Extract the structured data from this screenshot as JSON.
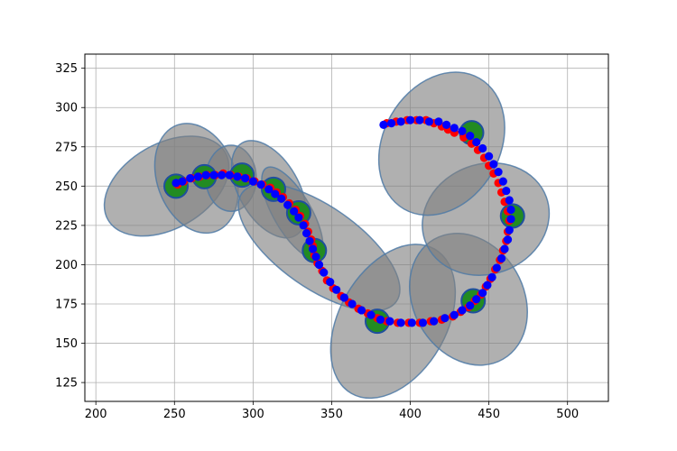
{
  "chart_data": {
    "type": "scatter",
    "title": "",
    "xlabel": "",
    "ylabel": "",
    "xlim": [
      193,
      526
    ],
    "ylim": [
      113,
      334
    ],
    "grid": true,
    "xticks": [
      200,
      250,
      300,
      350,
      400,
      450,
      500
    ],
    "yticks": [
      125,
      150,
      175,
      200,
      225,
      250,
      275,
      300,
      325
    ],
    "xtick_labels": [
      "200",
      "250",
      "300",
      "350",
      "400",
      "450",
      "500"
    ],
    "ytick_labels": [
      "125",
      "150",
      "175",
      "200",
      "225",
      "250",
      "275",
      "300",
      "325"
    ],
    "colors": {
      "ellipse_fill": "#808080",
      "ellipse_edge": "#4f7aa6",
      "landmark_fill": "#228b22",
      "landmark_edge": "#1f4f9e",
      "estimate": "#ff0000",
      "truth": "#0000ff"
    },
    "uncertainty_ellipses": [
      {
        "cx": 245,
        "cy": 250,
        "rx": 43,
        "ry": 27,
        "angle": 30
      },
      {
        "cx": 264,
        "cy": 255,
        "rx": 25,
        "ry": 36,
        "angle": 20
      },
      {
        "cx": 286,
        "cy": 255,
        "rx": 16,
        "ry": 21,
        "angle": 0
      },
      {
        "cx": 310,
        "cy": 248,
        "rx": 19,
        "ry": 34,
        "angle": 30
      },
      {
        "cx": 325,
        "cy": 233,
        "rx": 12,
        "ry": 33,
        "angle": 30
      },
      {
        "cx": 342,
        "cy": 211,
        "rx": 26,
        "ry": 60,
        "angle": 55
      },
      {
        "cx": 389,
        "cy": 164,
        "rx": 34,
        "ry": 53,
        "angle": -30
      },
      {
        "cx": 437,
        "cy": 178,
        "rx": 35,
        "ry": 44,
        "angle": 30
      },
      {
        "cx": 448,
        "cy": 229,
        "rx": 41,
        "ry": 35,
        "angle": 20
      },
      {
        "cx": 420,
        "cy": 277,
        "rx": 37,
        "ry": 48,
        "angle": -30
      }
    ],
    "landmarks": [
      {
        "x": 251,
        "y": 250
      },
      {
        "x": 269,
        "y": 256
      },
      {
        "x": 293,
        "y": 257
      },
      {
        "x": 313,
        "y": 248
      },
      {
        "x": 329,
        "y": 233
      },
      {
        "x": 339,
        "y": 209
      },
      {
        "x": 379,
        "y": 164
      },
      {
        "x": 440,
        "y": 177
      },
      {
        "x": 465,
        "y": 231
      },
      {
        "x": 439,
        "y": 284
      }
    ],
    "series": [
      {
        "marker": "red",
        "x": [
          252,
          256,
          261,
          266,
          271,
          276,
          281,
          286,
          291,
          296,
          301,
          306,
          311,
          315,
          319,
          323,
          327,
          330,
          333,
          335,
          337,
          338,
          339,
          341,
          344,
          347,
          351,
          356,
          361,
          367,
          373,
          379,
          385,
          392,
          399,
          406,
          413,
          420,
          427,
          432,
          437,
          441,
          445,
          448,
          451,
          454,
          457,
          459,
          461,
          462,
          463,
          462,
          460,
          458,
          456,
          453,
          450,
          447,
          443,
          439,
          434,
          428,
          424,
          420,
          415,
          410,
          404,
          398,
          391,
          385
        ],
        "y": [
          251,
          253,
          255,
          256,
          257,
          257,
          258,
          257,
          256,
          255,
          253,
          251,
          249,
          246,
          243,
          239,
          235,
          231,
          226,
          221,
          216,
          212,
          206,
          201,
          196,
          190,
          185,
          180,
          176,
          172,
          169,
          166,
          164,
          163,
          163,
          163,
          164,
          165,
          167,
          170,
          173,
          177,
          181,
          186,
          191,
          197,
          203,
          209,
          215,
          221,
          228,
          234,
          240,
          246,
          252,
          258,
          263,
          268,
          273,
          277,
          281,
          284,
          286,
          288,
          290,
          292,
          292,
          292,
          291,
          290
        ]
      },
      {
        "marker": "blue",
        "x": [
          251,
          255,
          260,
          265,
          270,
          275,
          280,
          285,
          290,
          295,
          300,
          305,
          310,
          314,
          318,
          322,
          326,
          329,
          332,
          334,
          336,
          338,
          340,
          342,
          345,
          349,
          353,
          358,
          363,
          369,
          375,
          381,
          387,
          394,
          401,
          408,
          415,
          422,
          428,
          433,
          438,
          442,
          446,
          449,
          452,
          455,
          458,
          460,
          462,
          463,
          464,
          464,
          463,
          461,
          459,
          456,
          453,
          450,
          446,
          442,
          438,
          433,
          428,
          423,
          418,
          412,
          406,
          400,
          394,
          388,
          383
        ],
        "y": [
          252,
          253,
          255,
          256,
          257,
          257,
          257,
          257,
          256,
          255,
          253,
          251,
          248,
          245,
          242,
          238,
          234,
          230,
          225,
          220,
          215,
          210,
          205,
          200,
          195,
          189,
          184,
          179,
          175,
          171,
          168,
          165,
          164,
          163,
          163,
          163,
          164,
          166,
          168,
          171,
          174,
          178,
          182,
          187,
          192,
          198,
          204,
          210,
          216,
          222,
          229,
          235,
          241,
          247,
          253,
          259,
          264,
          269,
          274,
          278,
          282,
          285,
          287,
          289,
          291,
          291,
          292,
          292,
          291,
          290,
          289
        ]
      }
    ]
  }
}
